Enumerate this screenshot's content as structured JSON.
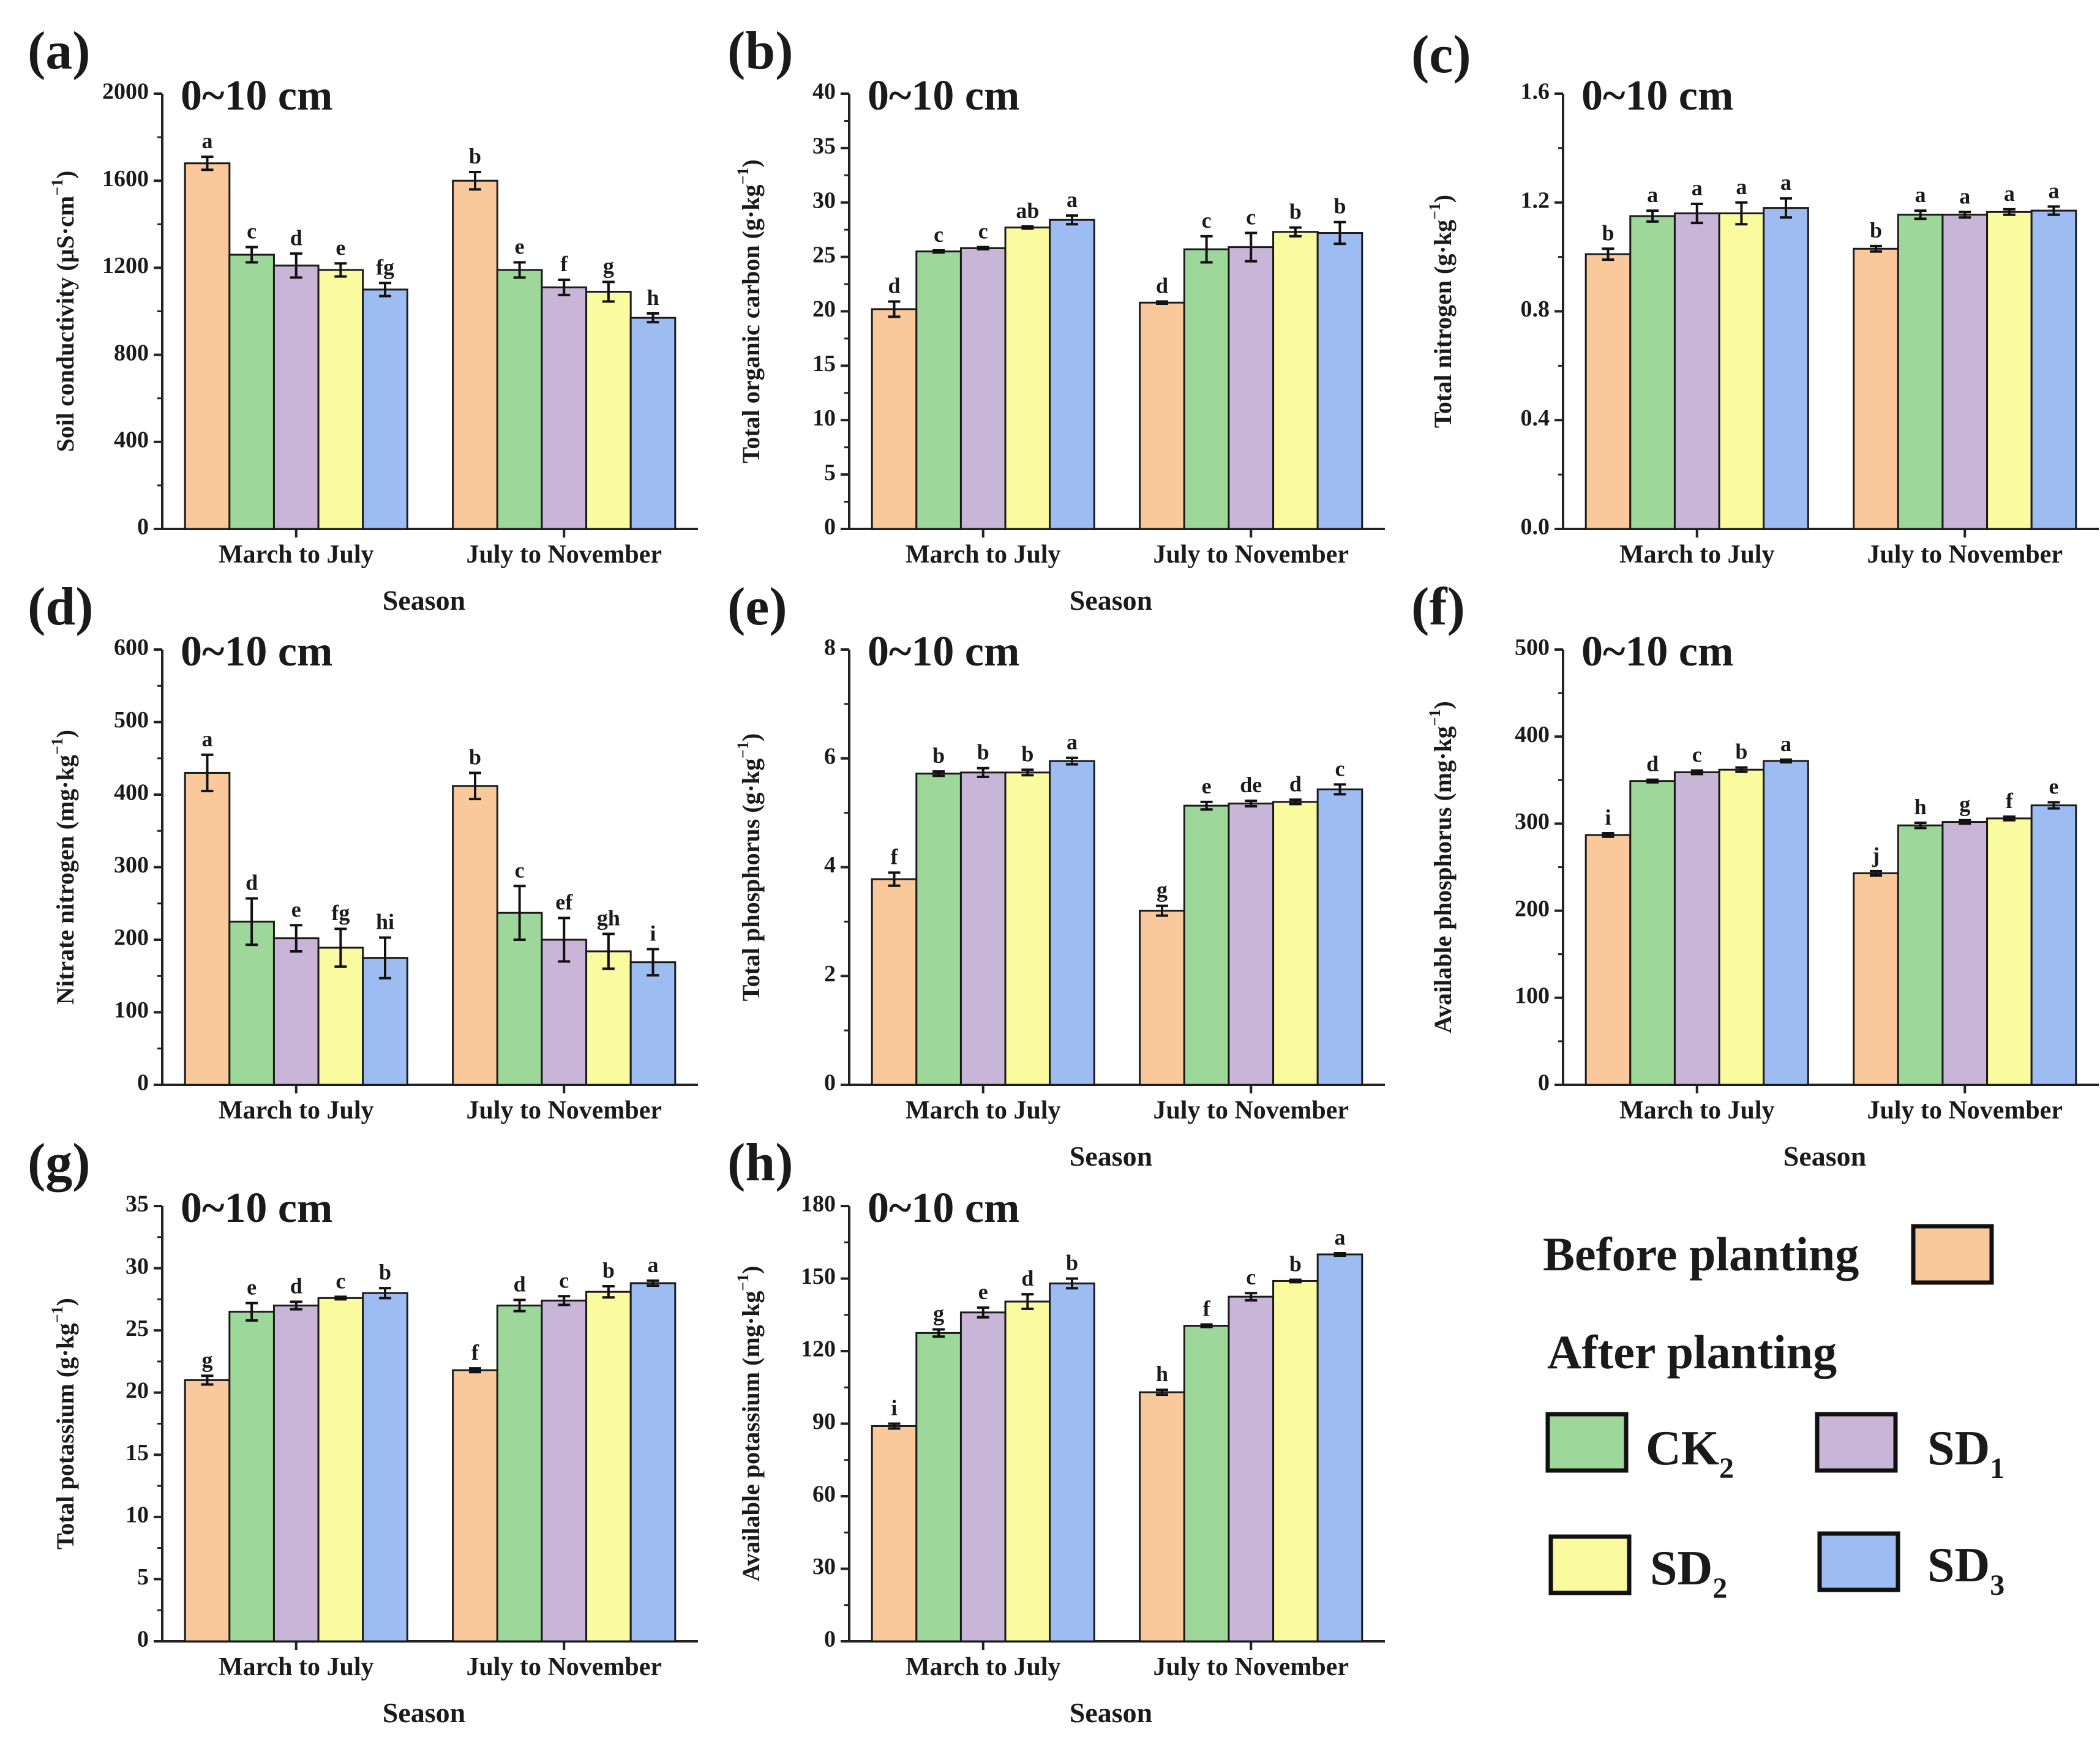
{
  "legend": {
    "before_title": "Before planting",
    "after_title": "After planting",
    "items": [
      {
        "base": "CK",
        "sub": "2",
        "color": "#9ed79a"
      },
      {
        "base": "SD",
        "sub": "1",
        "color": "#c9b5d8"
      },
      {
        "base": "SD",
        "sub": "2",
        "color": "#fafa9e"
      },
      {
        "base": "SD",
        "sub": "3",
        "color": "#9dbcf2"
      }
    ],
    "before_color": "#fac99b"
  },
  "chart_data": [
    {
      "type": "bar",
      "panel": "(a)",
      "depth": "0~10 cm",
      "categories": [
        "March to July",
        "July to November"
      ],
      "xlabel": "Season",
      "ylabel": {
        "main": "Soil conductivity (µS·cm",
        "sup": "−1",
        "tail": ")"
      },
      "ylim": [
        0,
        2000
      ],
      "yticks": [
        "0",
        "400",
        "800",
        "1200",
        "1600",
        "2000"
      ],
      "series": [
        {
          "name": "Before planting",
          "values": [
            1680,
            1600
          ],
          "errors": [
            30,
            40
          ],
          "letters": [
            "a",
            "b"
          ]
        },
        {
          "name": "CK2",
          "values": [
            1260,
            1190
          ],
          "errors": [
            35,
            35
          ],
          "letters": [
            "c",
            "e"
          ]
        },
        {
          "name": "SD1",
          "values": [
            1210,
            1110
          ],
          "errors": [
            55,
            35
          ],
          "letters": [
            "d",
            "f"
          ]
        },
        {
          "name": "SD2",
          "values": [
            1190,
            1090
          ],
          "errors": [
            30,
            45
          ],
          "letters": [
            "e",
            "g"
          ]
        },
        {
          "name": "SD3",
          "values": [
            1100,
            970
          ],
          "errors": [
            30,
            20
          ],
          "letters": [
            "fg",
            "h"
          ]
        }
      ]
    },
    {
      "type": "bar",
      "panel": "(b)",
      "depth": "0~10 cm",
      "categories": [
        "March to July",
        "July to November"
      ],
      "xlabel": "Season",
      "ylabel": {
        "main": "Total organic carbon (g·kg",
        "sup": "−1",
        "tail": ")"
      },
      "ylim": [
        0,
        40
      ],
      "yticks": [
        "0",
        "5",
        "10",
        "15",
        "20",
        "25",
        "30",
        "35",
        "40"
      ],
      "series": [
        {
          "name": "Before planting",
          "values": [
            20.2,
            20.8
          ],
          "errors": [
            0.7,
            0.1
          ],
          "letters": [
            "d",
            "d"
          ]
        },
        {
          "name": "CK2",
          "values": [
            25.5,
            25.7
          ],
          "errors": [
            0.1,
            1.2
          ],
          "letters": [
            "c",
            "c"
          ]
        },
        {
          "name": "SD1",
          "values": [
            25.8,
            25.9
          ],
          "errors": [
            0.1,
            1.3
          ],
          "letters": [
            "c",
            "c"
          ]
        },
        {
          "name": "SD2",
          "values": [
            27.7,
            27.3
          ],
          "errors": [
            0.1,
            0.4
          ],
          "letters": [
            "ab",
            "b"
          ]
        },
        {
          "name": "SD3",
          "values": [
            28.4,
            27.2
          ],
          "errors": [
            0.4,
            1.0
          ],
          "letters": [
            "a",
            "b"
          ]
        }
      ]
    },
    {
      "type": "bar",
      "panel": "(c)",
      "depth": "0~10 cm",
      "categories": [
        "March to July",
        "July to November"
      ],
      "xlabel": "",
      "ylabel": {
        "main": "Total nitrogen (g·kg",
        "sup": "−1",
        "tail": ")"
      },
      "ylim": [
        0,
        1.6
      ],
      "yticks": [
        "0.0",
        "0.4",
        "0.8",
        "1.2",
        "1.6"
      ],
      "series": [
        {
          "name": "Before planting",
          "values": [
            1.01,
            1.03
          ],
          "errors": [
            0.02,
            0.01
          ],
          "letters": [
            "b",
            "b"
          ]
        },
        {
          "name": "CK2",
          "values": [
            1.15,
            1.155
          ],
          "errors": [
            0.02,
            0.015
          ],
          "letters": [
            "a",
            "a"
          ]
        },
        {
          "name": "SD1",
          "values": [
            1.16,
            1.155
          ],
          "errors": [
            0.035,
            0.01
          ],
          "letters": [
            "a",
            "a"
          ]
        },
        {
          "name": "SD2",
          "values": [
            1.16,
            1.165
          ],
          "errors": [
            0.04,
            0.01
          ],
          "letters": [
            "a",
            "a"
          ]
        },
        {
          "name": "SD3",
          "values": [
            1.18,
            1.17
          ],
          "errors": [
            0.035,
            0.015
          ],
          "letters": [
            "a",
            "a"
          ]
        }
      ]
    },
    {
      "type": "bar",
      "panel": "(d)",
      "depth": "0~10 cm",
      "categories": [
        "March to July",
        "July to November"
      ],
      "xlabel": "",
      "ylabel": {
        "main": "Nitrate nitrogen (mg·kg",
        "sup": "−1",
        "tail": ")"
      },
      "ylim": [
        0,
        600
      ],
      "yticks": [
        "0",
        "100",
        "200",
        "300",
        "400",
        "500",
        "600"
      ],
      "series": [
        {
          "name": "Before planting",
          "values": [
            430,
            412
          ],
          "errors": [
            25,
            18
          ],
          "letters": [
            "a",
            "b"
          ]
        },
        {
          "name": "CK2",
          "values": [
            225,
            237
          ],
          "errors": [
            32,
            37
          ],
          "letters": [
            "d",
            "c"
          ]
        },
        {
          "name": "SD1",
          "values": [
            202,
            200
          ],
          "errors": [
            18,
            30
          ],
          "letters": [
            "e",
            "ef"
          ]
        },
        {
          "name": "SD2",
          "values": [
            189,
            184
          ],
          "errors": [
            26,
            24
          ],
          "letters": [
            "fg",
            "gh"
          ]
        },
        {
          "name": "SD3",
          "values": [
            175,
            169
          ],
          "errors": [
            28,
            18
          ],
          "letters": [
            "hi",
            "i"
          ]
        }
      ]
    },
    {
      "type": "bar",
      "panel": "(e)",
      "depth": "0~10 cm",
      "categories": [
        "March to July",
        "July to November"
      ],
      "xlabel": "Season",
      "ylabel": {
        "main": "Total phosphorus (g·kg",
        "sup": "−1",
        "tail": ")"
      },
      "ylim": [
        0,
        8
      ],
      "yticks": [
        "0",
        "2",
        "4",
        "6",
        "8"
      ],
      "series": [
        {
          "name": "Before planting",
          "values": [
            3.78,
            3.2
          ],
          "errors": [
            0.12,
            0.09
          ],
          "letters": [
            "f",
            "g"
          ]
        },
        {
          "name": "CK2",
          "values": [
            5.72,
            5.13
          ],
          "errors": [
            0.04,
            0.07
          ],
          "letters": [
            "b",
            "e"
          ]
        },
        {
          "name": "SD1",
          "values": [
            5.74,
            5.17
          ],
          "errors": [
            0.08,
            0.05
          ],
          "letters": [
            "b",
            "de"
          ]
        },
        {
          "name": "SD2",
          "values": [
            5.74,
            5.2
          ],
          "errors": [
            0.05,
            0.04
          ],
          "letters": [
            "b",
            "d"
          ]
        },
        {
          "name": "SD3",
          "values": [
            5.95,
            5.43
          ],
          "errors": [
            0.06,
            0.09
          ],
          "letters": [
            "a",
            "c"
          ]
        }
      ]
    },
    {
      "type": "bar",
      "panel": "(f)",
      "depth": "0~10 cm",
      "categories": [
        "March to July",
        "July to November"
      ],
      "xlabel": "Season",
      "ylabel": {
        "main": "Available phosphorus (mg·kg",
        "sup": "−1",
        "tail": ")"
      },
      "ylim": [
        0,
        500
      ],
      "yticks": [
        "0",
        "100",
        "200",
        "300",
        "400",
        "500"
      ],
      "series": [
        {
          "name": "Before planting",
          "values": [
            287,
            243
          ],
          "errors": [
            2,
            2.5
          ],
          "letters": [
            "i",
            "j"
          ]
        },
        {
          "name": "CK2",
          "values": [
            349,
            298
          ],
          "errors": [
            1.5,
            3
          ],
          "letters": [
            "d",
            "h"
          ]
        },
        {
          "name": "SD1",
          "values": [
            359,
            302
          ],
          "errors": [
            2,
            2
          ],
          "letters": [
            "c",
            "g"
          ]
        },
        {
          "name": "SD2",
          "values": [
            362,
            306
          ],
          "errors": [
            2.5,
            2
          ],
          "letters": [
            "b",
            "f"
          ]
        },
        {
          "name": "SD3",
          "values": [
            372,
            321
          ],
          "errors": [
            1.5,
            3.5
          ],
          "letters": [
            "a",
            "e"
          ]
        }
      ]
    },
    {
      "type": "bar",
      "panel": "(g)",
      "depth": "0~10 cm",
      "categories": [
        "March to July",
        "July to November"
      ],
      "xlabel": "Season",
      "ylabel": {
        "main": "Total potassium (g·kg",
        "sup": "−1",
        "tail": ")"
      },
      "ylim": [
        0,
        35
      ],
      "yticks": [
        "0",
        "5",
        "10",
        "15",
        "20",
        "25",
        "30",
        "35"
      ],
      "series": [
        {
          "name": "Before planting",
          "values": [
            21.0,
            21.8
          ],
          "errors": [
            0.35,
            0.15
          ],
          "letters": [
            "g",
            "f"
          ]
        },
        {
          "name": "CK2",
          "values": [
            26.5,
            27.0
          ],
          "errors": [
            0.7,
            0.45
          ],
          "letters": [
            "e",
            "d"
          ]
        },
        {
          "name": "SD1",
          "values": [
            27.0,
            27.4
          ],
          "errors": [
            0.3,
            0.35
          ],
          "letters": [
            "d",
            "c"
          ]
        },
        {
          "name": "SD2",
          "values": [
            27.6,
            28.1
          ],
          "errors": [
            0.1,
            0.45
          ],
          "letters": [
            "c",
            "b"
          ]
        },
        {
          "name": "SD3",
          "values": [
            28.0,
            28.8
          ],
          "errors": [
            0.4,
            0.2
          ],
          "letters": [
            "b",
            "a"
          ]
        }
      ]
    },
    {
      "type": "bar",
      "panel": "(h)",
      "depth": "0~10 cm",
      "categories": [
        "March to July",
        "July to November"
      ],
      "xlabel": "Season",
      "ylabel": {
        "main": "Available potassium (mg·kg",
        "sup": "−1",
        "tail": ")"
      },
      "ylim": [
        0,
        180
      ],
      "yticks": [
        "0",
        "30",
        "60",
        "90",
        "120",
        "150",
        "180"
      ],
      "series": [
        {
          "name": "Before planting",
          "values": [
            89,
            103
          ],
          "errors": [
            1,
            1
          ],
          "letters": [
            "i",
            "h"
          ]
        },
        {
          "name": "CK2",
          "values": [
            127.5,
            130.5
          ],
          "errors": [
            1.5,
            0.5
          ],
          "letters": [
            "g",
            "f"
          ]
        },
        {
          "name": "SD1",
          "values": [
            136,
            142.5
          ],
          "errors": [
            2,
            1.5
          ],
          "letters": [
            "e",
            "c"
          ]
        },
        {
          "name": "SD2",
          "values": [
            140.5,
            149
          ],
          "errors": [
            3,
            0.5
          ],
          "letters": [
            "d",
            "b"
          ]
        },
        {
          "name": "SD3",
          "values": [
            148,
            160
          ],
          "errors": [
            2,
            0.5
          ],
          "letters": [
            "b",
            "a"
          ]
        }
      ]
    }
  ]
}
